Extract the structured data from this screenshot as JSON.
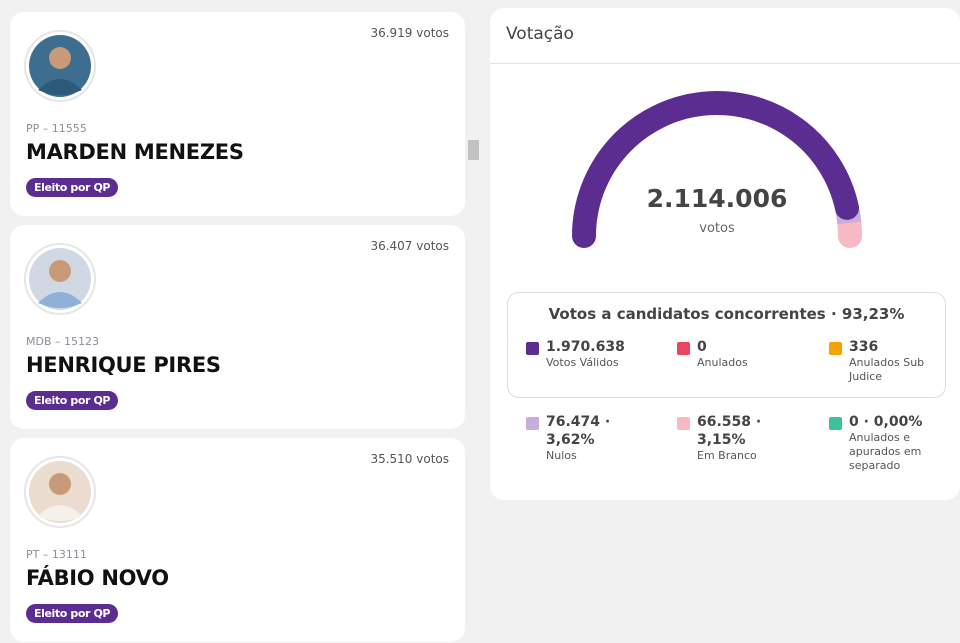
{
  "candidates": [
    {
      "votes": "36.919 votos",
      "party": "PP – 11555",
      "name": "MARDEN MENEZES",
      "badge": "Eleito por QP"
    },
    {
      "votes": "36.407 votos",
      "party": "MDB – 15123",
      "name": "HENRIQUE PIRES",
      "badge": "Eleito por QP"
    },
    {
      "votes": "35.510 votos",
      "party": "PT – 13111",
      "name": "FÁBIO NOVO",
      "badge": "Eleito por QP"
    }
  ],
  "panel": {
    "title": "Votação",
    "total": "2.114.006",
    "total_unit": "votos",
    "box_title": "Votos a candidatos concorrentes · 93,23%",
    "items": [
      {
        "value": "1.970.638",
        "label": "Votos Válidos",
        "color": "#5c2d91"
      },
      {
        "value": "0",
        "label": "Anulados",
        "color": "#e8475f"
      },
      {
        "value": "336",
        "label": "Anulados Sub Judice",
        "color": "#f5a300"
      },
      {
        "value": "76.474 · 3,62%",
        "label": "Nulos",
        "color": "#c7addb"
      },
      {
        "value": "66.558 · 3,15%",
        "label": "Em Branco",
        "color": "#f8b8c4"
      },
      {
        "value": "0 · 0,00%",
        "label": "Anulados e apurados em separado",
        "color": "#3cc29a"
      }
    ]
  }
}
